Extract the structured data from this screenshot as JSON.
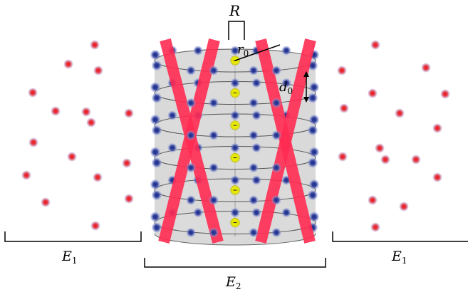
{
  "labels": {
    "R": "R",
    "r0": "r",
    "r0_sub": "0",
    "d0": "d",
    "d0_sub": "0",
    "E1_left": "E",
    "E1_left_sub": "1",
    "E2": "E",
    "E2_sub": "2",
    "E1_right": "E",
    "E1_right_sub": "1"
  },
  "colors": {
    "cylinder_fill": "#d9d9d9",
    "disk_stroke": "#555555",
    "red_atom": "#e8202a",
    "red_halo": "#b9a7d6",
    "blue_atom": "#2a3a9a",
    "blue_halo": "#8d9ad6",
    "yellow_atom": "#f2f200",
    "beam": "#ff2b52"
  },
  "disk_count": 6
}
